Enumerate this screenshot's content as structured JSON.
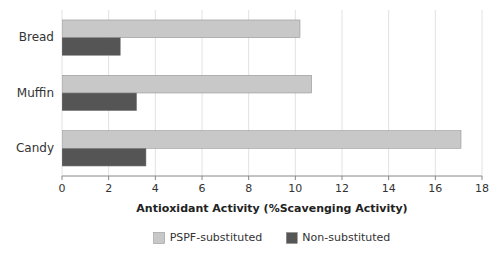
{
  "chart_data": {
    "type": "bar",
    "orientation": "horizontal",
    "categories": [
      "Candy",
      "Muffin",
      "Bread"
    ],
    "series": [
      {
        "name": "PSPF-substituted",
        "color": "#c8c8c8",
        "values": [
          17.1,
          10.7,
          10.2
        ]
      },
      {
        "name": "Non-substituted",
        "color": "#555555",
        "values": [
          3.6,
          3.2,
          2.5
        ]
      }
    ],
    "xlabel": "Antioxidant Activity (%Scavenging Activity)",
    "xlim": [
      0,
      18
    ],
    "xticks": [
      0,
      2,
      4,
      6,
      8,
      10,
      12,
      14,
      16,
      18
    ],
    "grid": true,
    "legend": "bottom"
  }
}
